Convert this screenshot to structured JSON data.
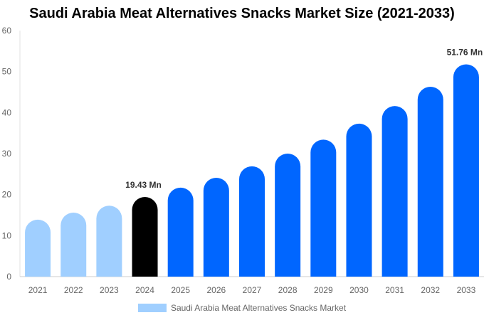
{
  "chart_data": {
    "type": "bar",
    "title": "Saudi Arabia Meat Alternatives Snacks Market Size (2021-2033)",
    "categories": [
      "2021",
      "2022",
      "2023",
      "2024",
      "2025",
      "2026",
      "2027",
      "2028",
      "2029",
      "2030",
      "2031",
      "2032",
      "2033"
    ],
    "series": [
      {
        "name": "Saudi Arabia Meat Alternatives Snacks Market",
        "values": [
          13.9,
          15.6,
          17.3,
          19.43,
          21.7,
          24.1,
          26.9,
          30.0,
          33.4,
          37.3,
          41.6,
          46.3,
          51.76
        ]
      }
    ],
    "data_labels": {
      "3": "19.43 Mn",
      "12": "51.76 Mn"
    },
    "ylim": [
      0,
      60
    ],
    "yticks": [
      0,
      10,
      20,
      30,
      40,
      50,
      60
    ],
    "grid": false,
    "legend": "bottom",
    "colors": {
      "historical": "#a0cfff",
      "base_year": "#000000",
      "forecast": "#0066ff"
    }
  }
}
